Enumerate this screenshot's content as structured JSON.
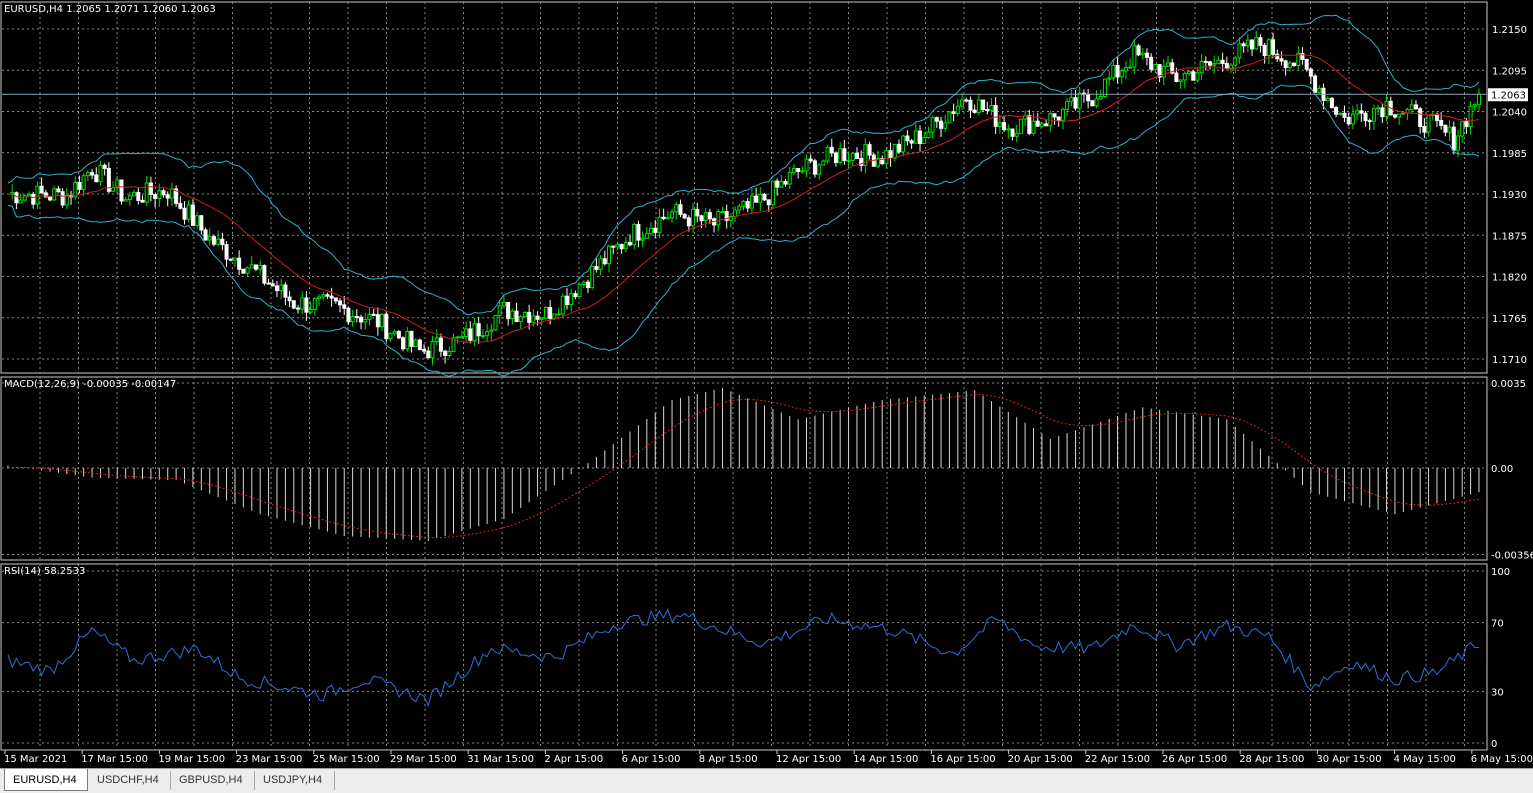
{
  "price_pane": {
    "label": "EURUSD,H4  1.2065 1.2071 1.2060 1.2063",
    "current_price": "1.2063",
    "y_ticks": [
      "1.2150",
      "1.2095",
      "1.2040",
      "1.1985",
      "1.1930",
      "1.1875",
      "1.1820",
      "1.1765",
      "1.1710"
    ]
  },
  "macd_pane": {
    "label": "MACD(12,26,9) -0.00035 -0.00147",
    "y_ticks": [
      "0.0035",
      "0.00",
      "-0.00356"
    ]
  },
  "rsi_pane": {
    "label": "RSI(14) 58.2533",
    "y_ticks": [
      "100",
      "70",
      "30",
      "0"
    ]
  },
  "x_axis": {
    "labels": [
      "15 Mar 2021",
      "17 Mar 15:00",
      "19 Mar 15:00",
      "23 Mar 15:00",
      "25 Mar 15:00",
      "29 Mar 15:00",
      "31 Mar 15:00",
      "2 Apr 15:00",
      "6 Apr 15:00",
      "8 Apr 15:00",
      "12 Apr 15:00",
      "14 Apr 15:00",
      "16 Apr 15:00",
      "20 Apr 15:00",
      "22 Apr 15:00",
      "26 Apr 15:00",
      "28 Apr 15:00",
      "30 Apr 15:00",
      "4 May 15:00",
      "6 May 15:00"
    ]
  },
  "tabs": [
    {
      "label": "EURUSD,H4",
      "active": true
    },
    {
      "label": "USDCHF,H4",
      "active": false
    },
    {
      "label": "GBPUSD,H4",
      "active": false
    },
    {
      "label": "USDJPY,H4",
      "active": false
    }
  ],
  "colors": {
    "bull_candle": "#00e000",
    "bear_candle": "#ffffff",
    "grid": "#8a8a8a",
    "bollinger": "#2fb1c6",
    "moving_average": "#d01c1c",
    "macd_hist": "#d8d8d8",
    "macd_signal": "#e02020",
    "rsi_line": "#2f6fd6"
  },
  "chart_data": {
    "type": "line",
    "price_key_points": [
      [
        0,
        1.193
      ],
      [
        14,
        1.1928
      ],
      [
        20,
        1.1965
      ],
      [
        28,
        1.1925
      ],
      [
        38,
        1.1935
      ],
      [
        48,
        1.187
      ],
      [
        58,
        1.183
      ],
      [
        68,
        1.1785
      ],
      [
        78,
        1.178
      ],
      [
        88,
        1.176
      ],
      [
        98,
        1.172
      ],
      [
        108,
        1.1735
      ],
      [
        118,
        1.1775
      ],
      [
        128,
        1.177
      ],
      [
        138,
        1.182
      ],
      [
        148,
        1.1875
      ],
      [
        158,
        1.1905
      ],
      [
        168,
        1.189
      ],
      [
        178,
        1.1915
      ],
      [
        188,
        1.196
      ],
      [
        198,
        1.1985
      ],
      [
        208,
        1.198
      ],
      [
        218,
        1.201
      ],
      [
        228,
        1.206
      ],
      [
        238,
        1.202
      ],
      [
        248,
        1.203
      ],
      [
        258,
        1.206
      ],
      [
        268,
        1.2115
      ],
      [
        278,
        1.2085
      ],
      [
        288,
        1.2105
      ],
      [
        298,
        1.213
      ],
      [
        308,
        1.21
      ],
      [
        318,
        1.203
      ],
      [
        328,
        1.205
      ],
      [
        338,
        1.2025
      ],
      [
        344,
        1.2003
      ],
      [
        350,
        1.2063
      ]
    ],
    "macd_key_points": [
      [
        0,
        0.0001
      ],
      [
        20,
        -0.0004
      ],
      [
        40,
        -0.0005
      ],
      [
        60,
        -0.0019
      ],
      [
        80,
        -0.0028
      ],
      [
        100,
        -0.003
      ],
      [
        118,
        -0.0021
      ],
      [
        138,
        0.0002
      ],
      [
        158,
        0.0028
      ],
      [
        170,
        0.0033
      ],
      [
        188,
        0.002
      ],
      [
        208,
        0.0028
      ],
      [
        230,
        0.0032
      ],
      [
        248,
        0.0012
      ],
      [
        270,
        0.0025
      ],
      [
        290,
        0.002
      ],
      [
        310,
        -0.001
      ],
      [
        330,
        -0.0019
      ],
      [
        350,
        -0.001
      ]
    ],
    "rsi_key_points": [
      [
        0,
        48
      ],
      [
        10,
        42
      ],
      [
        20,
        65
      ],
      [
        30,
        48
      ],
      [
        45,
        55
      ],
      [
        55,
        38
      ],
      [
        65,
        33
      ],
      [
        75,
        28
      ],
      [
        85,
        37
      ],
      [
        100,
        25
      ],
      [
        115,
        55
      ],
      [
        130,
        50
      ],
      [
        145,
        70
      ],
      [
        160,
        75
      ],
      [
        170,
        66
      ],
      [
        180,
        58
      ],
      [
        195,
        72
      ],
      [
        210,
        66
      ],
      [
        225,
        52
      ],
      [
        235,
        72
      ],
      [
        245,
        56
      ],
      [
        258,
        55
      ],
      [
        268,
        69
      ],
      [
        278,
        57
      ],
      [
        290,
        68
      ],
      [
        300,
        62
      ],
      [
        310,
        33
      ],
      [
        320,
        47
      ],
      [
        330,
        37
      ],
      [
        340,
        41
      ],
      [
        350,
        58
      ]
    ]
  }
}
